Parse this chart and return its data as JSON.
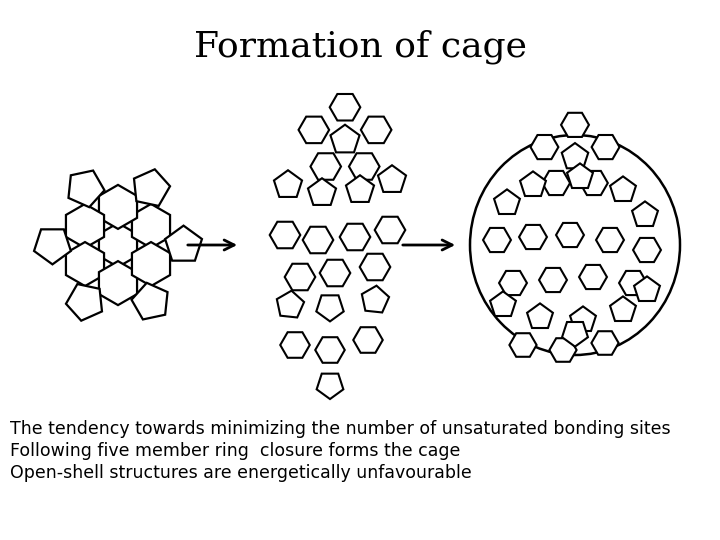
{
  "title": "Formation of cage",
  "title_fontsize": 26,
  "title_font": "DejaVu Serif",
  "body_text_line1": "The tendency towards minimizing the number of unsaturated bonding sites",
  "body_text_line2": "Following five member ring  closure forms the cage",
  "body_text_line3": "Open-shell structures are energetically unfavourable",
  "body_fontsize": 12.5,
  "bg_color": "#ffffff",
  "text_color": "#000000",
  "lw_hex": 1.4,
  "lw_pent": 1.4,
  "edge_color": "#000000"
}
